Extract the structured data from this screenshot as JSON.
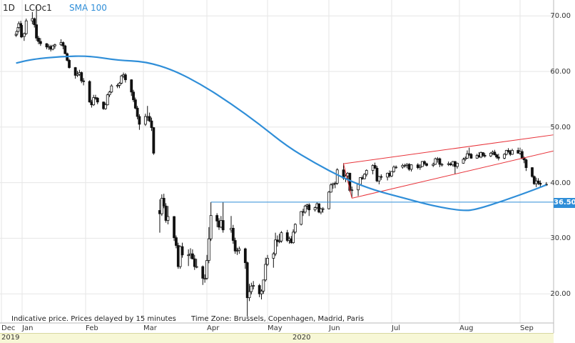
{
  "header": {
    "timeframe": "1D",
    "symbol": "LCOc1",
    "indicator": "SMA 100"
  },
  "footer_note": {
    "delay": "Indicative price. Prices delayed by 15 minutes",
    "timezone": "Time Zone: Brussels, Copenhagen, Madrid, Paris"
  },
  "x_axis": {
    "months": [
      "Dec",
      "Jan",
      "Feb",
      "Mar",
      "Apr",
      "May",
      "Jun",
      "Jul",
      "Aug",
      "Sep"
    ],
    "years": [
      "2019",
      "2020"
    ]
  },
  "price_tag": "36.50",
  "colors": {
    "sma": "#2f8ed8",
    "channel": "#e8333a",
    "level": "#2f8ed8",
    "candle": "#111111"
  },
  "chart_data": {
    "type": "candlestick",
    "ylim": [
      15,
      74
    ],
    "y_ticks": [
      "70.00",
      "60.00",
      "50.00",
      "40.00",
      "30.00",
      "20.00"
    ],
    "grid": true,
    "candles": [
      [
        "2019-12-23",
        66.5,
        66.9,
        66.2,
        66.7
      ],
      [
        "2019-12-24",
        66.7,
        67.4,
        66.5,
        67.2
      ],
      [
        "2019-12-26",
        67.2,
        68.1,
        67.0,
        67.9
      ],
      [
        "2019-12-27",
        67.9,
        69.0,
        67.7,
        68.6
      ],
      [
        "2019-12-30",
        68.6,
        69.1,
        68.1,
        68.3
      ],
      [
        "2019-12-31",
        68.3,
        68.7,
        66.0,
        66.2
      ],
      [
        "2020-01-02",
        66.3,
        67.0,
        65.5,
        66.8
      ],
      [
        "2020-01-03",
        66.8,
        69.5,
        66.6,
        69.1
      ],
      [
        "2020-01-06",
        69.1,
        70.7,
        68.5,
        69.5
      ],
      [
        "2020-01-07",
        69.5,
        69.7,
        67.9,
        68.4
      ],
      [
        "2020-01-08",
        68.4,
        71.8,
        65.5,
        66.0
      ],
      [
        "2020-01-09",
        66.0,
        66.4,
        64.9,
        65.4
      ],
      [
        "2020-01-10",
        65.4,
        66.0,
        64.6,
        65.0
      ],
      [
        "2020-01-13",
        65.0,
        65.1,
        64.0,
        64.4
      ],
      [
        "2020-01-14",
        64.4,
        64.9,
        63.9,
        64.5
      ],
      [
        "2020-01-15",
        64.5,
        64.8,
        63.6,
        64.0
      ],
      [
        "2020-01-16",
        64.0,
        64.8,
        63.8,
        64.6
      ],
      [
        "2020-01-17",
        64.6,
        65.0,
        64.1,
        64.8
      ],
      [
        "2020-01-20",
        64.8,
        65.8,
        64.6,
        65.2
      ],
      [
        "2020-01-21",
        65.2,
        65.4,
        64.0,
        64.6
      ],
      [
        "2020-01-22",
        64.6,
        64.8,
        63.1,
        63.2
      ],
      [
        "2020-01-23",
        63.2,
        63.4,
        61.8,
        62.0
      ],
      [
        "2020-01-24",
        62.0,
        62.3,
        60.5,
        60.7
      ],
      [
        "2020-01-27",
        60.7,
        60.8,
        58.7,
        59.3
      ],
      [
        "2020-01-28",
        59.3,
        60.1,
        59.0,
        59.5
      ],
      [
        "2020-01-29",
        59.5,
        60.3,
        59.2,
        59.8
      ],
      [
        "2020-01-30",
        59.8,
        60.0,
        57.9,
        58.3
      ],
      [
        "2020-01-31",
        58.3,
        58.8,
        57.5,
        58.2
      ],
      [
        "2020-02-03",
        58.2,
        58.4,
        54.4,
        54.5
      ],
      [
        "2020-02-04",
        54.5,
        54.9,
        53.5,
        54.0
      ],
      [
        "2020-02-05",
        54.0,
        55.8,
        53.8,
        55.3
      ],
      [
        "2020-02-06",
        55.3,
        55.8,
        54.9,
        55.2
      ],
      [
        "2020-02-07",
        55.2,
        55.4,
        54.1,
        54.5
      ],
      [
        "2020-02-10",
        54.5,
        54.6,
        53.1,
        53.3
      ],
      [
        "2020-02-11",
        53.3,
        54.4,
        53.1,
        54.0
      ],
      [
        "2020-02-12",
        54.0,
        56.0,
        53.9,
        55.8
      ],
      [
        "2020-02-13",
        55.8,
        56.5,
        55.4,
        56.3
      ],
      [
        "2020-02-14",
        56.3,
        57.7,
        56.1,
        57.4
      ],
      [
        "2020-02-17",
        57.4,
        57.8,
        57.0,
        57.5
      ],
      [
        "2020-02-18",
        57.5,
        58.1,
        57.0,
        57.9
      ],
      [
        "2020-02-19",
        57.9,
        59.4,
        57.7,
        59.2
      ],
      [
        "2020-02-20",
        59.2,
        59.8,
        58.8,
        59.4
      ],
      [
        "2020-02-21",
        59.4,
        59.7,
        58.0,
        58.5
      ],
      [
        "2020-02-24",
        58.5,
        58.6,
        55.6,
        56.3
      ],
      [
        "2020-02-25",
        56.3,
        56.7,
        54.5,
        54.9
      ],
      [
        "2020-02-26",
        54.9,
        55.3,
        53.2,
        53.4
      ],
      [
        "2020-02-27",
        53.4,
        53.8,
        51.4,
        51.9
      ],
      [
        "2020-02-28",
        51.9,
        52.3,
        49.5,
        50.5
      ],
      [
        "2020-03-02",
        50.5,
        52.4,
        50.2,
        51.9
      ],
      [
        "2020-03-03",
        51.9,
        53.8,
        51.1,
        51.9
      ],
      [
        "2020-03-04",
        51.9,
        52.6,
        50.9,
        51.1
      ],
      [
        "2020-03-05",
        51.1,
        51.7,
        49.3,
        49.9
      ],
      [
        "2020-03-06",
        49.9,
        50.0,
        45.0,
        45.3
      ],
      [
        "2020-03-09",
        35.0,
        37.0,
        31.0,
        34.4
      ],
      [
        "2020-03-10",
        34.4,
        37.9,
        34.0,
        37.2
      ],
      [
        "2020-03-11",
        37.2,
        38.0,
        35.4,
        35.8
      ],
      [
        "2020-03-12",
        35.8,
        36.3,
        32.8,
        33.2
      ],
      [
        "2020-03-13",
        33.2,
        35.8,
        32.5,
        33.9
      ],
      [
        "2020-03-16",
        33.9,
        34.0,
        29.5,
        30.1
      ],
      [
        "2020-03-17",
        30.1,
        30.5,
        28.2,
        28.7
      ],
      [
        "2020-03-18",
        28.7,
        29.2,
        24.5,
        24.9
      ],
      [
        "2020-03-19",
        24.9,
        28.7,
        24.5,
        28.5
      ],
      [
        "2020-03-20",
        28.5,
        29.2,
        26.5,
        27.0
      ],
      [
        "2020-03-23",
        27.0,
        28.0,
        25.0,
        27.0
      ],
      [
        "2020-03-24",
        27.0,
        28.2,
        26.3,
        27.2
      ],
      [
        "2020-03-25",
        27.2,
        28.0,
        26.2,
        26.3
      ],
      [
        "2020-03-26",
        26.3,
        27.0,
        24.3,
        24.9
      ],
      [
        "2020-03-27",
        24.9,
        26.3,
        24.6,
        24.9
      ],
      [
        "2020-03-30",
        24.9,
        25.1,
        21.6,
        22.8
      ],
      [
        "2020-03-31",
        22.8,
        23.5,
        22.0,
        22.8
      ],
      [
        "2020-04-01",
        22.8,
        27.0,
        22.5,
        26.0
      ],
      [
        "2020-04-02",
        26.0,
        32.0,
        25.5,
        29.9
      ],
      [
        "2020-04-03",
        29.9,
        36.5,
        29.5,
        34.1
      ],
      [
        "2020-04-06",
        34.1,
        34.5,
        32.0,
        33.1
      ],
      [
        "2020-04-07",
        33.1,
        33.6,
        31.5,
        32.0
      ],
      [
        "2020-04-08",
        32.0,
        34.0,
        31.8,
        33.2
      ],
      [
        "2020-04-09",
        33.2,
        36.5,
        31.0,
        31.5
      ],
      [
        "2020-04-13",
        31.5,
        34.0,
        31.0,
        31.8
      ],
      [
        "2020-04-14",
        31.8,
        32.4,
        29.0,
        29.6
      ],
      [
        "2020-04-15",
        29.6,
        30.1,
        27.2,
        27.7
      ],
      [
        "2020-04-16",
        27.7,
        28.3,
        27.0,
        27.8
      ],
      [
        "2020-04-17",
        27.8,
        28.5,
        27.2,
        28.1
      ],
      [
        "2020-04-20",
        28.1,
        28.3,
        24.5,
        25.6
      ],
      [
        "2020-04-21",
        25.6,
        25.8,
        15.9,
        19.3
      ],
      [
        "2020-04-22",
        19.3,
        21.8,
        18.7,
        20.4
      ],
      [
        "2020-04-23",
        20.4,
        22.0,
        19.9,
        21.4
      ],
      [
        "2020-04-24",
        21.4,
        22.3,
        20.8,
        21.5
      ],
      [
        "2020-04-27",
        21.5,
        21.8,
        19.4,
        20.0
      ],
      [
        "2020-04-28",
        20.0,
        20.8,
        19.0,
        20.5
      ],
      [
        "2020-04-29",
        20.5,
        22.5,
        20.0,
        22.5
      ],
      [
        "2020-04-30",
        22.5,
        26.5,
        22.2,
        25.3
      ],
      [
        "2020-05-01",
        25.3,
        27.0,
        25.0,
        26.4
      ],
      [
        "2020-05-04",
        26.4,
        27.5,
        24.7,
        27.2
      ],
      [
        "2020-05-05",
        27.2,
        31.0,
        26.8,
        29.7
      ],
      [
        "2020-05-06",
        29.7,
        30.5,
        28.5,
        29.4
      ],
      [
        "2020-05-07",
        29.4,
        30.8,
        29.1,
        29.5
      ],
      [
        "2020-05-08",
        29.5,
        31.3,
        29.2,
        31.0
      ],
      [
        "2020-05-11",
        31.0,
        31.5,
        29.3,
        29.6
      ],
      [
        "2020-05-12",
        29.6,
        30.3,
        29.0,
        29.9
      ],
      [
        "2020-05-13",
        29.9,
        30.4,
        29.0,
        29.2
      ],
      [
        "2020-05-14",
        29.2,
        31.6,
        29.0,
        31.1
      ],
      [
        "2020-05-15",
        31.1,
        32.7,
        30.8,
        32.5
      ],
      [
        "2020-05-18",
        32.5,
        34.9,
        32.3,
        34.8
      ],
      [
        "2020-05-19",
        34.8,
        35.3,
        34.0,
        34.7
      ],
      [
        "2020-05-20",
        34.7,
        36.0,
        34.4,
        35.8
      ],
      [
        "2020-05-21",
        35.8,
        36.2,
        35.2,
        36.0
      ],
      [
        "2020-05-22",
        36.0,
        36.3,
        34.0,
        35.1
      ],
      [
        "2020-05-25",
        35.1,
        35.7,
        34.8,
        35.5
      ],
      [
        "2020-05-26",
        35.5,
        36.5,
        35.3,
        36.2
      ],
      [
        "2020-05-27",
        36.2,
        36.3,
        34.5,
        34.7
      ],
      [
        "2020-05-28",
        34.7,
        35.5,
        34.3,
        35.3
      ],
      [
        "2020-05-29",
        35.3,
        35.6,
        34.6,
        35.3
      ],
      [
        "2020-06-01",
        35.3,
        38.5,
        35.2,
        38.3
      ],
      [
        "2020-06-02",
        38.3,
        39.9,
        38.2,
        39.6
      ],
      [
        "2020-06-03",
        39.6,
        40.0,
        38.9,
        39.8
      ],
      [
        "2020-06-04",
        39.8,
        40.2,
        39.0,
        39.9
      ],
      [
        "2020-06-05",
        39.9,
        42.6,
        39.6,
        42.3
      ],
      [
        "2020-06-08",
        42.3,
        43.5,
        40.5,
        40.8
      ],
      [
        "2020-06-09",
        40.8,
        41.5,
        40.1,
        41.2
      ],
      [
        "2020-06-10",
        41.2,
        41.9,
        40.6,
        41.7
      ],
      [
        "2020-06-11",
        41.7,
        41.8,
        38.3,
        38.6
      ],
      [
        "2020-06-12",
        38.6,
        39.3,
        37.3,
        38.7
      ],
      [
        "2020-06-15",
        38.7,
        39.9,
        37.6,
        39.7
      ],
      [
        "2020-06-16",
        39.7,
        41.0,
        39.5,
        40.9
      ],
      [
        "2020-06-17",
        40.9,
        41.3,
        40.5,
        40.7
      ],
      [
        "2020-06-18",
        40.7,
        41.7,
        40.6,
        41.5
      ],
      [
        "2020-06-19",
        41.5,
        42.4,
        41.1,
        42.2
      ],
      [
        "2020-06-22",
        42.2,
        43.3,
        41.5,
        43.1
      ],
      [
        "2020-06-23",
        43.1,
        43.6,
        42.5,
        42.6
      ],
      [
        "2020-06-24",
        42.6,
        43.0,
        40.1,
        40.3
      ],
      [
        "2020-06-25",
        40.3,
        41.2,
        39.7,
        41.1
      ],
      [
        "2020-06-26",
        41.1,
        41.5,
        40.5,
        41.0
      ],
      [
        "2020-06-29",
        41.0,
        41.8,
        40.4,
        41.7
      ],
      [
        "2020-06-30",
        41.7,
        42.2,
        40.9,
        41.2
      ],
      [
        "2020-07-01",
        41.2,
        42.1,
        41.0,
        42.0
      ],
      [
        "2020-07-02",
        42.0,
        43.1,
        41.8,
        42.8
      ],
      [
        "2020-07-03",
        42.8,
        43.1,
        42.5,
        42.8
      ],
      [
        "2020-07-06",
        42.8,
        43.4,
        42.5,
        43.1
      ],
      [
        "2020-07-07",
        43.1,
        43.4,
        42.7,
        43.1
      ],
      [
        "2020-07-08",
        43.1,
        43.5,
        42.6,
        43.3
      ],
      [
        "2020-07-09",
        43.3,
        43.5,
        42.1,
        42.4
      ],
      [
        "2020-07-10",
        42.4,
        43.3,
        42.0,
        43.2
      ],
      [
        "2020-07-13",
        43.2,
        43.5,
        42.4,
        42.7
      ],
      [
        "2020-07-14",
        42.7,
        43.3,
        42.3,
        42.9
      ],
      [
        "2020-07-15",
        42.9,
        43.9,
        42.8,
        43.8
      ],
      [
        "2020-07-16",
        43.8,
        44.0,
        43.1,
        43.4
      ],
      [
        "2020-07-17",
        43.4,
        43.6,
        42.9,
        43.1
      ],
      [
        "2020-07-20",
        43.1,
        43.6,
        42.8,
        43.3
      ],
      [
        "2020-07-21",
        43.3,
        44.5,
        43.2,
        44.3
      ],
      [
        "2020-07-22",
        44.3,
        44.6,
        43.6,
        44.3
      ],
      [
        "2020-07-23",
        44.3,
        44.5,
        42.8,
        43.3
      ],
      [
        "2020-07-24",
        43.3,
        43.5,
        42.9,
        43.3
      ],
      [
        "2020-07-27",
        43.3,
        43.8,
        43.0,
        43.4
      ],
      [
        "2020-07-28",
        43.4,
        43.7,
        43.0,
        43.2
      ],
      [
        "2020-07-29",
        43.2,
        43.9,
        42.9,
        43.8
      ],
      [
        "2020-07-30",
        43.8,
        43.9,
        41.5,
        42.9
      ],
      [
        "2020-07-31",
        42.9,
        43.6,
        42.5,
        43.5
      ],
      [
        "2020-08-03",
        43.5,
        44.5,
        43.4,
        44.2
      ],
      [
        "2020-08-04",
        44.2,
        44.7,
        43.9,
        44.4
      ],
      [
        "2020-08-05",
        44.4,
        45.8,
        44.3,
        45.2
      ],
      [
        "2020-08-06",
        45.2,
        46.3,
        44.8,
        45.1
      ],
      [
        "2020-08-07",
        45.1,
        45.3,
        44.3,
        44.4
      ],
      [
        "2020-08-10",
        44.4,
        45.2,
        44.3,
        44.9
      ],
      [
        "2020-08-11",
        44.9,
        45.5,
        44.5,
        44.6
      ],
      [
        "2020-08-12",
        44.6,
        45.6,
        44.4,
        45.4
      ],
      [
        "2020-08-13",
        45.4,
        45.5,
        44.6,
        44.9
      ],
      [
        "2020-08-14",
        44.9,
        45.3,
        44.5,
        44.8
      ],
      [
        "2020-08-17",
        44.8,
        45.5,
        44.6,
        45.3
      ],
      [
        "2020-08-18",
        45.3,
        45.8,
        45.0,
        45.5
      ],
      [
        "2020-08-19",
        45.5,
        45.9,
        44.9,
        45.0
      ],
      [
        "2020-08-20",
        45.0,
        45.2,
        44.3,
        44.6
      ],
      [
        "2020-08-21",
        44.6,
        45.2,
        44.0,
        44.4
      ],
      [
        "2020-08-24",
        44.4,
        45.3,
        44.2,
        45.1
      ],
      [
        "2020-08-25",
        45.1,
        45.9,
        44.9,
        45.8
      ],
      [
        "2020-08-26",
        45.8,
        46.2,
        45.4,
        45.6
      ],
      [
        "2020-08-27",
        45.6,
        45.9,
        44.8,
        45.1
      ],
      [
        "2020-08-28",
        45.1,
        46.1,
        45.0,
        45.8
      ],
      [
        "2020-08-31",
        45.8,
        46.3,
        45.2,
        45.3
      ],
      [
        "2020-09-01",
        45.3,
        46.3,
        45.0,
        45.6
      ],
      [
        "2020-09-02",
        45.6,
        46.0,
        44.2,
        44.4
      ],
      [
        "2020-09-03",
        44.4,
        44.7,
        43.5,
        44.1
      ],
      [
        "2020-09-04",
        44.1,
        44.3,
        42.1,
        42.7
      ],
      [
        "2020-09-07",
        42.7,
        42.8,
        40.9,
        41.1
      ],
      [
        "2020-09-08",
        41.1,
        41.3,
        39.6,
        39.8
      ],
      [
        "2020-09-09",
        39.8,
        40.9,
        39.2,
        40.3
      ],
      [
        "2020-09-10",
        40.3,
        40.8,
        39.6,
        39.9
      ],
      [
        "2020-09-11",
        39.9,
        40.4,
        39.3,
        39.7
      ],
      [
        "2020-09-14",
        39.7,
        40.1,
        39.4,
        39.6
      ]
    ],
    "sma100": [
      [
        "2019-12-23",
        61.5
      ],
      [
        "2020-01-06",
        62.2
      ],
      [
        "2020-01-20",
        62.7
      ],
      [
        "2020-02-03",
        62.8
      ],
      [
        "2020-02-17",
        62.0
      ],
      [
        "2020-03-02",
        61.8
      ],
      [
        "2020-03-16",
        60.2
      ],
      [
        "2020-03-30",
        57.5
      ],
      [
        "2020-04-13",
        54.2
      ],
      [
        "2020-04-27",
        50.5
      ],
      [
        "2020-05-11",
        46.5
      ],
      [
        "2020-05-25",
        43.5
      ],
      [
        "2020-06-08",
        40.8
      ],
      [
        "2020-06-22",
        38.7
      ],
      [
        "2020-07-06",
        37.3
      ],
      [
        "2020-07-20",
        35.8
      ],
      [
        "2020-08-03",
        34.9
      ],
      [
        "2020-08-10",
        35.2
      ],
      [
        "2020-08-24",
        36.8
      ],
      [
        "2020-09-07",
        38.6
      ],
      [
        "2020-09-14",
        39.6
      ]
    ],
    "channel_upper": [
      [
        "2020-06-08",
        43.4
      ],
      [
        "2020-09-18",
        48.6
      ]
    ],
    "channel_lower": [
      [
        "2020-06-12",
        37.2
      ],
      [
        "2020-09-18",
        45.7
      ]
    ],
    "level": 36.5
  }
}
